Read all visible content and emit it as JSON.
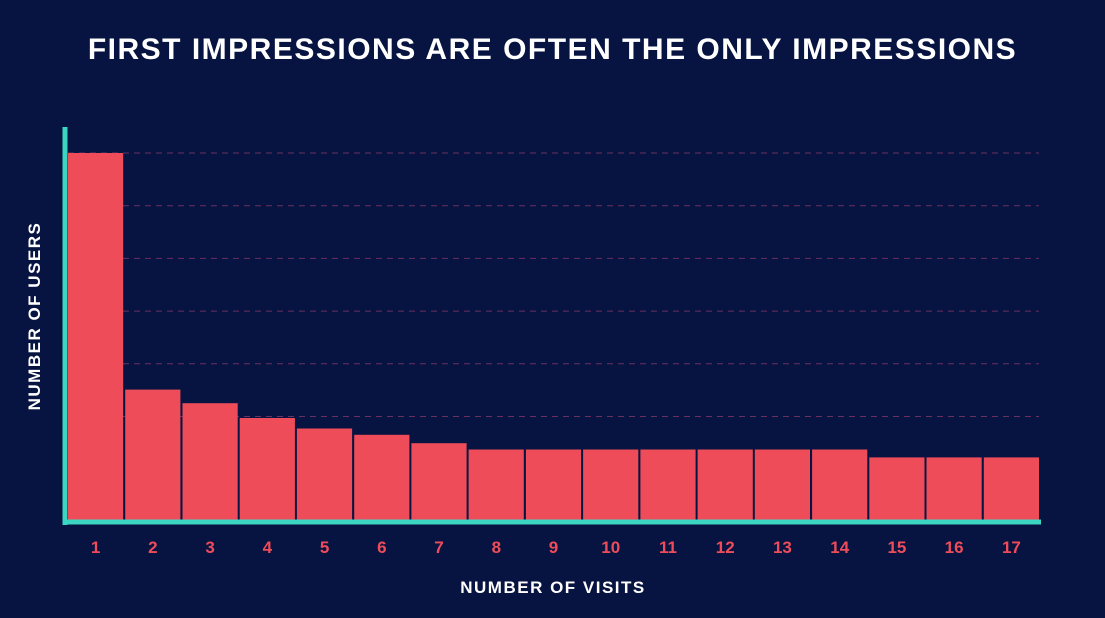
{
  "colors": {
    "background": "#071340",
    "bar": "#ef4c5a",
    "axis": "#3ad6c2",
    "grid": "#6a3160",
    "tick_label": "#ef4c5a",
    "text": "#ffffff"
  },
  "chart_data": {
    "type": "bar",
    "title": "FIRST IMPRESSIONS ARE OFTEN THE ONLY IMPRESSIONS",
    "xlabel": "NUMBER OF VISITS",
    "ylabel": "NUMBER OF USERS",
    "categories": [
      "1",
      "2",
      "3",
      "4",
      "5",
      "6",
      "7",
      "8",
      "9",
      "10",
      "11",
      "12",
      "13",
      "14",
      "15",
      "16",
      "17"
    ],
    "values": [
      70,
      25,
      22.4,
      19.6,
      17.6,
      16.4,
      14.8,
      13.6,
      13.6,
      13.6,
      13.6,
      13.6,
      13.6,
      13.6,
      12.1,
      12.1,
      12.1
    ],
    "ylim": [
      0,
      70
    ],
    "y_ticks_shown": false,
    "grid": "horizontal dashed",
    "legend": "none"
  }
}
